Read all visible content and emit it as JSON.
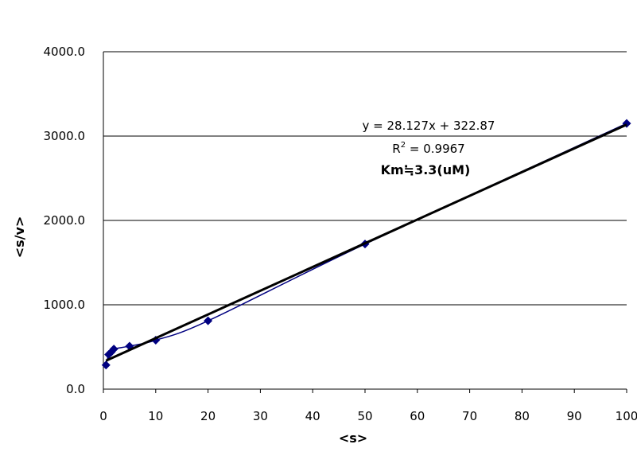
{
  "chart_data": {
    "type": "scatter",
    "xlabel": "<s>",
    "ylabel": "<s/v>",
    "xlim": [
      0,
      100
    ],
    "ylim": [
      0,
      4000
    ],
    "x_ticks": [
      "0",
      "10",
      "20",
      "30",
      "40",
      "50",
      "60",
      "70",
      "80",
      "90",
      "100"
    ],
    "y_ticks": [
      "0.0",
      "1000.0",
      "2000.0",
      "3000.0",
      "4000.0"
    ],
    "grid": "horizontal",
    "series": [
      {
        "x": [
          0.5,
          1,
          1.5,
          2,
          5,
          10,
          20,
          50,
          100
        ],
        "y": [
          285,
          410,
          440,
          475,
          510,
          580,
          810,
          1720,
          3150
        ],
        "marker": "diamond",
        "color": "#000080",
        "connect": "smooth-line"
      }
    ],
    "trendline": {
      "slope": 28.127,
      "intercept": 322.87,
      "x_range": [
        0.5,
        100
      ],
      "color": "#000000"
    },
    "annotations": {
      "equation": "y = 28.127x + 322.87",
      "r_squared_prefix": "R",
      "r_squared_sup": "2",
      "r_squared_value": " = 0.9967",
      "km": "Km≒3.3(uM)"
    }
  }
}
